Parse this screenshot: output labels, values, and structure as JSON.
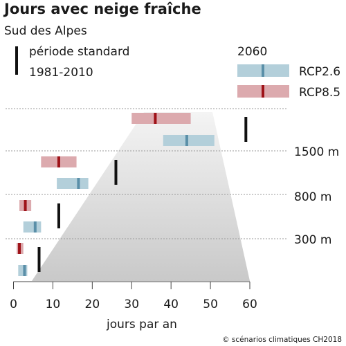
{
  "chart_data": {
    "type": "bar",
    "title": "Jours avec neige fraîche",
    "subtitle": "Sud des Alpes",
    "xlabel": "jours par an",
    "ylabel": "",
    "xlim": [
      0,
      60
    ],
    "x_ticks": [
      "0",
      "10",
      "20",
      "30",
      "40",
      "50",
      "60"
    ],
    "elevations": [
      "1500 m",
      "800 m",
      "300 m"
    ],
    "legend": {
      "standard_label_line1": "période standard",
      "standard_label_line2": "1981-2010",
      "scenario_year": "2060",
      "rcp26_label": "RCP2.6",
      "rcp85_label": "RCP8.5"
    },
    "groups": [
      {
        "elevation": "above 1500 m",
        "standard": 59,
        "rcp85": {
          "low": 30,
          "median": 36,
          "high": 45
        },
        "rcp26": {
          "low": 38,
          "median": 44,
          "high": 51
        }
      },
      {
        "elevation": "800-1500 m",
        "standard": 26,
        "rcp85": {
          "low": 7,
          "median": 11.5,
          "high": 16
        },
        "rcp26": {
          "low": 11,
          "median": 16.5,
          "high": 19
        }
      },
      {
        "elevation": "300-800 m",
        "standard": 11.5,
        "rcp85": {
          "low": 1.5,
          "median": 3,
          "high": 4.5
        },
        "rcp26": {
          "low": 2.5,
          "median": 5.5,
          "high": 7
        }
      },
      {
        "elevation": "below 300 m",
        "standard": 6.5,
        "rcp85": {
          "low": 0.8,
          "median": 1.5,
          "high": 2.5
        },
        "rcp26": {
          "low": 1.2,
          "median": 2.8,
          "high": 3.5
        }
      }
    ],
    "colors": {
      "rcp26_fill": "#b3cfda",
      "rcp26_median": "#5a8fa8",
      "rcp85_fill": "#dcaaae",
      "rcp85_median": "#9e1218",
      "standard": "#111111",
      "mountain_top": "#f4f4f4",
      "mountain_bottom": "#c9c9c9",
      "separator": "#9a9a9a"
    }
  },
  "credit": "© scénarios climatiques CH2018"
}
